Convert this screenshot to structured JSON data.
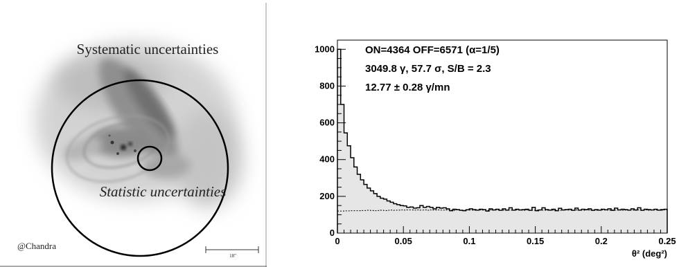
{
  "left_panel": {
    "top_label": "Systematic uncertainties",
    "inner_label": "Statistic uncertainties",
    "credit": "@Chandra",
    "scale_label": "18\""
  },
  "chart_data": {
    "type": "bar",
    "subtype": "histogram",
    "title": "",
    "xlabel": "θ² (deg²)",
    "ylabel": "",
    "xlim": [
      0,
      0.25
    ],
    "ylim": [
      0,
      1050
    ],
    "xticks": [
      "0",
      "0.05",
      "0.1",
      "0.15",
      "0.2",
      "0.25"
    ],
    "yticks": [
      "0",
      "200",
      "400",
      "600",
      "800",
      "1000"
    ],
    "bin_width": 0.0025,
    "grid": false,
    "annotations": [
      "ON=4364 OFF=6571 (α=1/5)",
      "3049.8 γ, 57.7 σ, S/B = 2.3",
      "12.77 ± 0.28 γ/mn"
    ],
    "series": [
      {
        "style": "solid-filled",
        "values": [
          1000,
          700,
          545,
          475,
          410,
          360,
          320,
          290,
          265,
          245,
          230,
          215,
          200,
          190,
          185,
          175,
          168,
          160,
          155,
          150,
          148,
          140,
          142,
          136,
          138,
          150,
          140,
          145,
          140,
          132,
          140,
          136,
          138,
          132,
          122,
          130,
          128,
          124,
          122,
          127,
          132,
          128,
          125,
          130,
          128,
          120,
          132,
          126,
          130,
          124,
          132,
          125,
          138,
          125,
          130,
          126,
          128,
          130,
          124,
          140,
          122,
          126,
          138,
          128,
          125,
          130,
          122,
          135,
          126,
          128,
          130,
          124,
          136,
          125,
          130,
          128,
          132,
          124,
          128,
          125,
          130,
          127,
          132,
          124,
          136,
          126,
          130,
          128,
          125,
          132,
          126,
          138,
          124,
          130,
          128,
          126,
          130,
          125,
          128,
          130
        ]
      },
      {
        "style": "dotted",
        "values": [
          120,
          120,
          121,
          121,
          122,
          122,
          122,
          123,
          123,
          124,
          123,
          122,
          123,
          124,
          123,
          124,
          125,
          124,
          125,
          126,
          125,
          126,
          126,
          125,
          126,
          125,
          126,
          124,
          126,
          125,
          126,
          125,
          125,
          126,
          125,
          124,
          126,
          125,
          124,
          126,
          125,
          124,
          125,
          126,
          125,
          124,
          126,
          125,
          126,
          124,
          125,
          126,
          125,
          124,
          126,
          125,
          124,
          126,
          125,
          124,
          125,
          126,
          125,
          124,
          126,
          125,
          126,
          124,
          125,
          126,
          125,
          124,
          126,
          125,
          124,
          126,
          125,
          126,
          124,
          125,
          126,
          125,
          124,
          126,
          125,
          126,
          124,
          125,
          126,
          125,
          124,
          126,
          125,
          126,
          124,
          125,
          126,
          125,
          124,
          126
        ]
      }
    ]
  }
}
